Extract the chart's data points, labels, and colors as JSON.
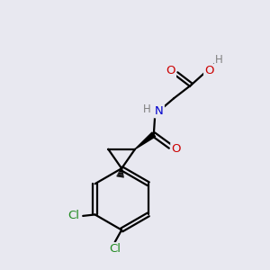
{
  "bg_color": "#e8e8f0",
  "atom_colors": {
    "C": "#000000",
    "N": "#0000cc",
    "O": "#cc0000",
    "Cl": "#228B22",
    "H": "#808080"
  }
}
